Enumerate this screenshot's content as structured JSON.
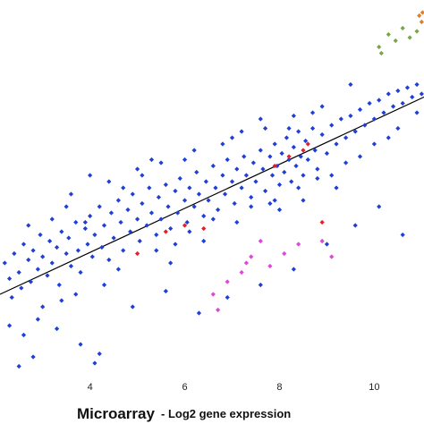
{
  "chart_data": {
    "type": "scatter",
    "title": "",
    "xlabel_main": "Microarray",
    "xlabel_sub": " - Log2 gene expression",
    "ylabel": "",
    "xlim": [
      2.1,
      11.05
    ],
    "ylim": [
      2.0,
      14.0
    ],
    "x_ticks": [
      4,
      6,
      8,
      10
    ],
    "grid": false,
    "legend": "none",
    "trendline": {
      "x": [
        2.1,
        11.05
      ],
      "y": [
        4.6,
        10.9
      ],
      "color": "#000000"
    },
    "series": [
      {
        "color": "#1f3fd6",
        "points": [
          [
            2.2,
            5.6
          ],
          [
            2.3,
            5.1
          ],
          [
            2.35,
            4.5
          ],
          [
            2.4,
            5.9
          ],
          [
            2.5,
            5.3
          ],
          [
            2.55,
            4.8
          ],
          [
            2.6,
            6.2
          ],
          [
            2.7,
            5.7
          ],
          [
            2.75,
            5.0
          ],
          [
            2.8,
            6.0
          ],
          [
            2.9,
            5.4
          ],
          [
            2.95,
            6.5
          ],
          [
            3.0,
            5.8
          ],
          [
            3.1,
            5.2
          ],
          [
            3.15,
            6.3
          ],
          [
            3.2,
            5.6
          ],
          [
            3.3,
            6.1
          ],
          [
            3.35,
            4.9
          ],
          [
            3.4,
            6.6
          ],
          [
            3.5,
            5.9
          ],
          [
            3.55,
            6.4
          ],
          [
            3.6,
            5.5
          ],
          [
            3.7,
            6.9
          ],
          [
            3.75,
            6.0
          ],
          [
            3.8,
            5.3
          ],
          [
            3.9,
            6.7
          ],
          [
            3.95,
            6.2
          ],
          [
            4.0,
            7.1
          ],
          [
            4.05,
            5.8
          ],
          [
            4.1,
            6.5
          ],
          [
            4.2,
            7.4
          ],
          [
            4.25,
            6.1
          ],
          [
            4.3,
            6.8
          ],
          [
            4.4,
            5.7
          ],
          [
            4.45,
            7.2
          ],
          [
            4.5,
            6.4
          ],
          [
            4.6,
            7.6
          ],
          [
            4.65,
            6.9
          ],
          [
            4.7,
            6.0
          ],
          [
            4.8,
            7.3
          ],
          [
            4.85,
            6.6
          ],
          [
            4.9,
            7.8
          ],
          [
            5.0,
            7.0
          ],
          [
            5.05,
            6.3
          ],
          [
            5.1,
            7.5
          ],
          [
            5.2,
            6.8
          ],
          [
            5.25,
            8.0
          ],
          [
            5.3,
            7.2
          ],
          [
            5.4,
            6.5
          ],
          [
            5.45,
            7.7
          ],
          [
            5.5,
            7.0
          ],
          [
            5.6,
            8.1
          ],
          [
            5.65,
            7.4
          ],
          [
            5.7,
            6.7
          ],
          [
            5.8,
            7.9
          ],
          [
            5.85,
            7.2
          ],
          [
            5.9,
            8.3
          ],
          [
            6.0,
            7.6
          ],
          [
            6.05,
            6.9
          ],
          [
            6.1,
            8.0
          ],
          [
            6.2,
            7.4
          ],
          [
            6.25,
            8.5
          ],
          [
            6.3,
            7.8
          ],
          [
            6.4,
            7.1
          ],
          [
            6.45,
            8.2
          ],
          [
            6.5,
            7.6
          ],
          [
            6.6,
            8.7
          ],
          [
            6.65,
            8.0
          ],
          [
            6.7,
            7.3
          ],
          [
            6.8,
            8.4
          ],
          [
            6.85,
            7.8
          ],
          [
            6.9,
            8.9
          ],
          [
            7.0,
            8.2
          ],
          [
            7.05,
            7.5
          ],
          [
            7.1,
            8.6
          ],
          [
            7.2,
            8.0
          ],
          [
            7.25,
            9.0
          ],
          [
            7.3,
            8.4
          ],
          [
            7.4,
            7.7
          ],
          [
            7.45,
            8.8
          ],
          [
            7.5,
            8.2
          ],
          [
            7.6,
            9.2
          ],
          [
            7.65,
            8.6
          ],
          [
            7.7,
            7.9
          ],
          [
            7.8,
            9.0
          ],
          [
            7.85,
            8.4
          ],
          [
            7.9,
            9.4
          ],
          [
            7.95,
            8.7
          ],
          [
            8.0,
            8.1
          ],
          [
            8.05,
            9.1
          ],
          [
            8.1,
            8.5
          ],
          [
            8.15,
            9.6
          ],
          [
            8.2,
            8.9
          ],
          [
            8.25,
            8.2
          ],
          [
            8.3,
            9.3
          ],
          [
            8.35,
            8.7
          ],
          [
            8.4,
            9.8
          ],
          [
            8.45,
            9.0
          ],
          [
            8.5,
            8.4
          ],
          [
            8.55,
            9.5
          ],
          [
            8.6,
            8.9
          ],
          [
            8.7,
            9.9
          ],
          [
            8.75,
            9.2
          ],
          [
            8.8,
            8.6
          ],
          [
            8.9,
            9.7
          ],
          [
            9.0,
            9.1
          ],
          [
            9.1,
            10.0
          ],
          [
            9.2,
            9.4
          ],
          [
            9.3,
            10.2
          ],
          [
            9.4,
            9.6
          ],
          [
            9.5,
            10.3
          ],
          [
            9.6,
            9.8
          ],
          [
            9.7,
            10.5
          ],
          [
            9.8,
            10.0
          ],
          [
            9.9,
            10.7
          ],
          [
            10.0,
            10.2
          ],
          [
            10.1,
            10.8
          ],
          [
            10.2,
            10.4
          ],
          [
            10.3,
            11.0
          ],
          [
            10.4,
            10.6
          ],
          [
            10.5,
            11.1
          ],
          [
            10.6,
            10.7
          ],
          [
            10.7,
            11.2
          ],
          [
            10.8,
            10.9
          ],
          [
            10.9,
            11.3
          ],
          [
            11.0,
            11.0
          ],
          [
            2.3,
            3.6
          ],
          [
            2.6,
            3.3
          ],
          [
            2.9,
            3.8
          ],
          [
            3.3,
            3.5
          ],
          [
            3.8,
            3.0
          ],
          [
            4.2,
            2.7
          ],
          [
            4.1,
            2.4
          ],
          [
            2.5,
            2.3
          ],
          [
            2.8,
            2.6
          ],
          [
            3.0,
            4.2
          ],
          [
            5.0,
            8.6
          ],
          [
            5.5,
            8.8
          ],
          [
            6.2,
            9.2
          ],
          [
            7.0,
            9.6
          ],
          [
            7.7,
            9.9
          ],
          [
            8.3,
            10.3
          ],
          [
            8.9,
            10.6
          ],
          [
            9.5,
            11.3
          ],
          [
            4.4,
            8.2
          ],
          [
            3.5,
            7.4
          ],
          [
            4.9,
            4.2
          ],
          [
            5.6,
            4.7
          ],
          [
            6.3,
            4.0
          ],
          [
            6.9,
            4.5
          ],
          [
            7.6,
            4.9
          ],
          [
            8.3,
            5.4
          ],
          [
            9.0,
            6.2
          ],
          [
            9.6,
            6.8
          ],
          [
            10.1,
            7.4
          ],
          [
            10.6,
            6.5
          ],
          [
            3.2,
            7.0
          ],
          [
            3.6,
            7.8
          ],
          [
            4.0,
            8.4
          ],
          [
            2.7,
            6.8
          ],
          [
            3.9,
            6.9
          ],
          [
            4.7,
            8.0
          ],
          [
            5.3,
            8.9
          ],
          [
            5.8,
            6.2
          ],
          [
            6.6,
            7.0
          ],
          [
            7.4,
            7.4
          ],
          [
            7.9,
            7.6
          ],
          [
            8.4,
            8.0
          ],
          [
            9.1,
            8.4
          ],
          [
            9.7,
            9.0
          ],
          [
            10.3,
            9.6
          ],
          [
            8.2,
            9.9
          ],
          [
            7.6,
            10.2
          ],
          [
            6.8,
            9.4
          ],
          [
            7.2,
            9.8
          ],
          [
            8.7,
            10.4
          ],
          [
            8.0,
            7.3
          ],
          [
            8.5,
            7.6
          ],
          [
            9.2,
            8.0
          ],
          [
            6.1,
            6.6
          ],
          [
            5.4,
            6.0
          ],
          [
            4.6,
            5.4
          ],
          [
            4.3,
            4.9
          ],
          [
            3.7,
            4.6
          ],
          [
            3.4,
            4.4
          ],
          [
            5.7,
            5.6
          ],
          [
            6.4,
            6.3
          ],
          [
            7.1,
            6.9
          ],
          [
            7.8,
            7.5
          ],
          [
            8.8,
            8.3
          ],
          [
            9.4,
            8.8
          ],
          [
            10.0,
            9.4
          ],
          [
            10.5,
            9.9
          ],
          [
            10.9,
            10.4
          ],
          [
            6.0,
            8.9
          ],
          [
            5.1,
            8.4
          ]
        ]
      },
      {
        "color": "#e3202a",
        "points": [
          [
            5.0,
            5.9
          ],
          [
            5.6,
            6.6
          ],
          [
            6.0,
            6.8
          ],
          [
            6.4,
            6.7
          ],
          [
            7.9,
            8.7
          ],
          [
            8.2,
            9.0
          ],
          [
            8.5,
            9.2
          ],
          [
            8.6,
            9.4
          ],
          [
            8.9,
            6.9
          ]
        ]
      },
      {
        "color": "#de47d9",
        "points": [
          [
            6.7,
            4.1
          ],
          [
            6.9,
            5.0
          ],
          [
            7.2,
            5.3
          ],
          [
            7.3,
            5.6
          ],
          [
            7.4,
            5.8
          ],
          [
            7.8,
            5.5
          ],
          [
            8.1,
            5.9
          ],
          [
            8.4,
            6.2
          ],
          [
            8.9,
            6.3
          ],
          [
            9.1,
            5.8
          ],
          [
            6.6,
            4.6
          ],
          [
            7.6,
            6.3
          ]
        ]
      },
      {
        "color": "#77a844",
        "points": [
          [
            10.1,
            12.5
          ],
          [
            10.3,
            12.9
          ],
          [
            10.45,
            12.7
          ],
          [
            10.6,
            13.1
          ],
          [
            10.75,
            12.8
          ],
          [
            10.9,
            13.0
          ],
          [
            10.15,
            12.3
          ]
        ]
      },
      {
        "color": "#e57b22",
        "points": [
          [
            10.95,
            13.5
          ],
          [
            11.0,
            13.3
          ],
          [
            11.02,
            13.6
          ]
        ]
      }
    ]
  }
}
